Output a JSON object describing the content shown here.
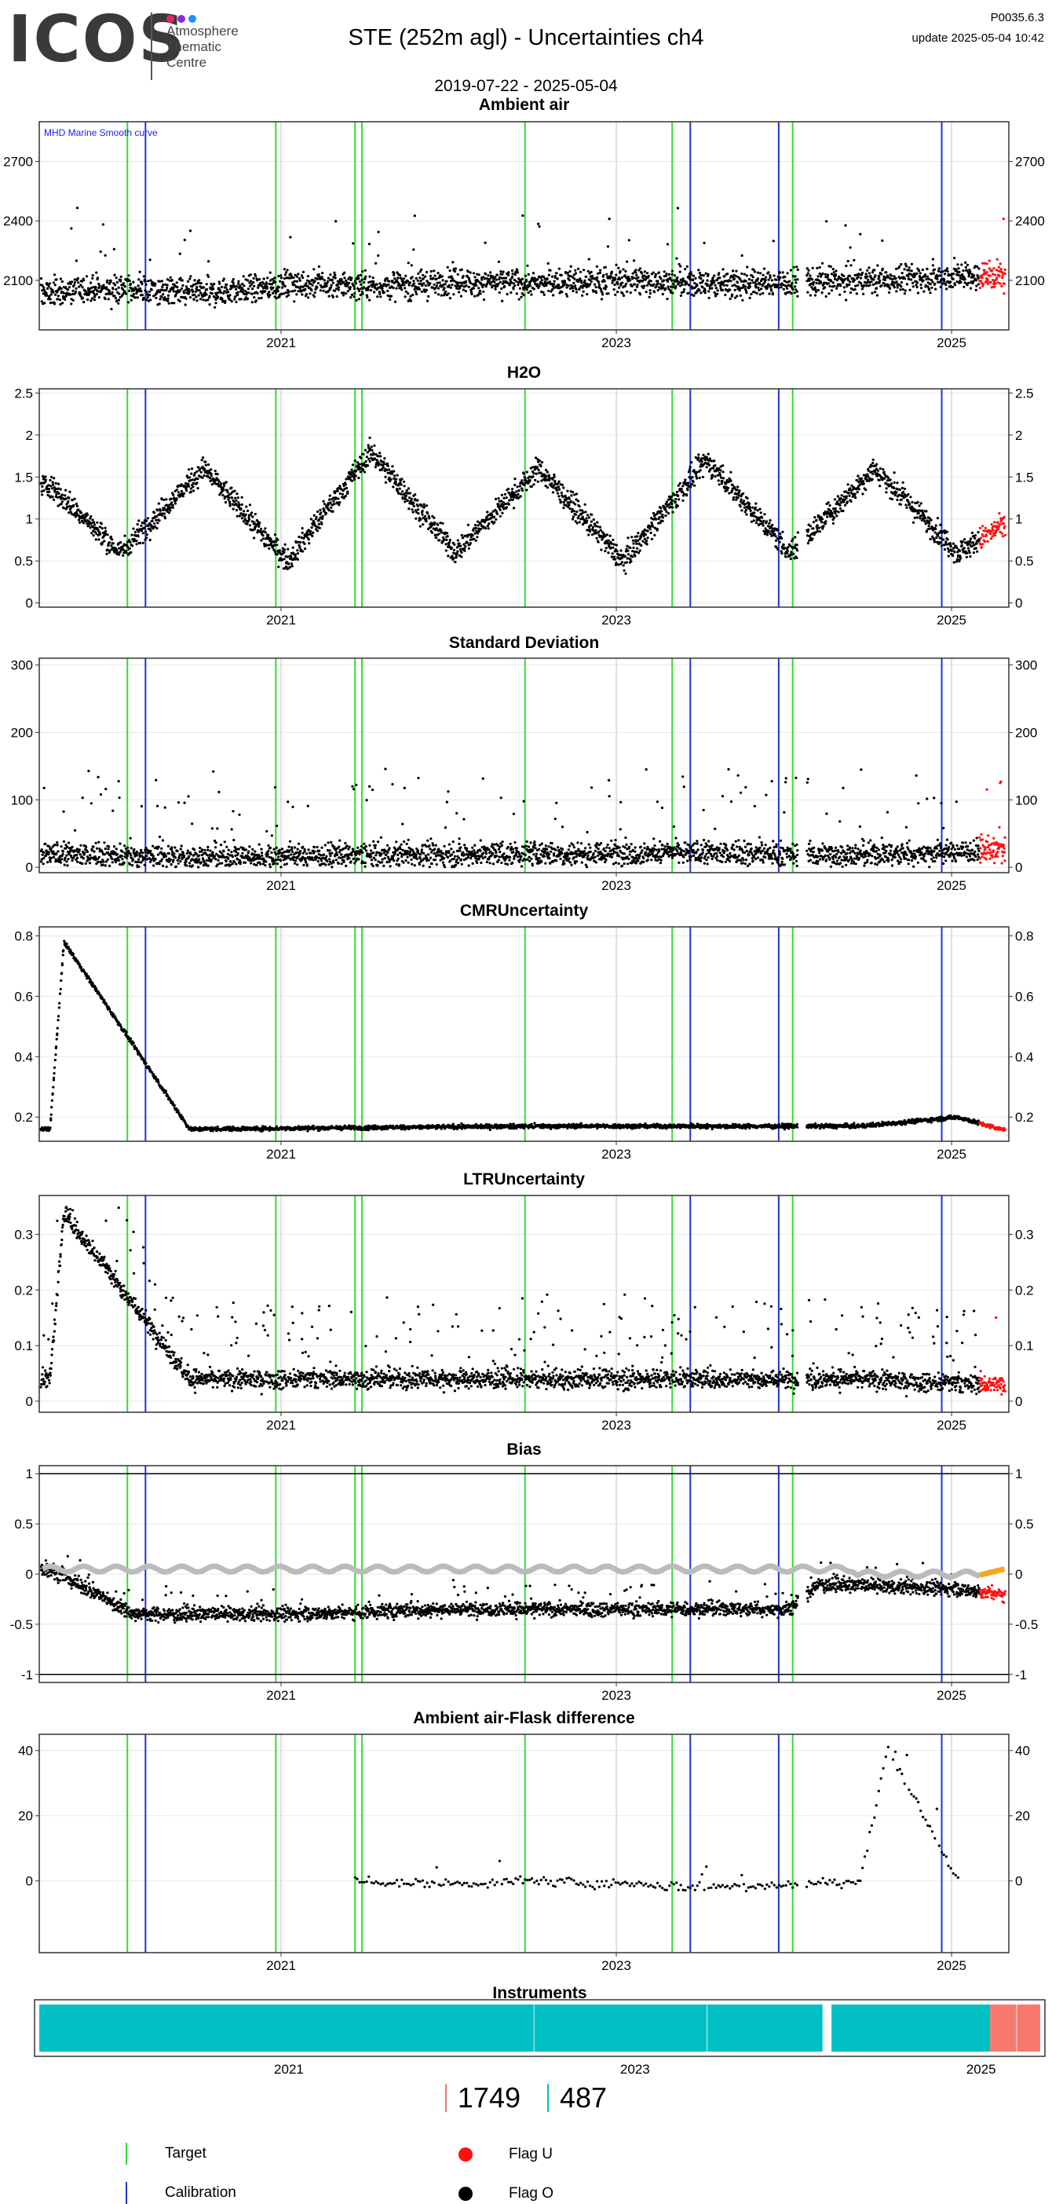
{
  "header": {
    "logo_text": "ICOS",
    "logo_subtitle": [
      "Atmosphere",
      "Thematic",
      "Centre"
    ],
    "title": "STE  (252m agl) - Uncertainties ch4",
    "date_range": "2019-07-22 - 2025-05-04",
    "version": "P0035.6.3",
    "update": "update  2025-05-04 10:42"
  },
  "colors": {
    "target": "#33dd33",
    "calibration": "#2233cc",
    "flag_u": "#ff1111",
    "flag_o": "#000000",
    "smooth": "#bbbbbb",
    "smooth_recent": "#f5a623",
    "instrument_a": "#00c0c4",
    "instrument_b": "#f7796e",
    "annotation_text": "#1a1aff"
  },
  "chart_data": [
    {
      "type": "scatter",
      "title": "Ambient air",
      "x_range": [
        "2019-07-22",
        "2025-05-04"
      ],
      "ylim": [
        1850,
        2900
      ],
      "yticks": [
        2100,
        2400,
        2700
      ],
      "xticks": [
        "2021",
        "2023",
        "2025"
      ],
      "annotation": "MHD Marine Smooth curve",
      "series": [
        {
          "values_x": [
            "2019-08",
            "2020-01",
            "2020-07",
            "2021-01",
            "2021-07",
            "2022-01",
            "2022-07",
            "2023-01",
            "2023-07",
            "2024-01",
            "2024-07",
            "2025-01"
          ],
          "values_y": [
            2040,
            2060,
            2030,
            2080,
            2070,
            2090,
            2085,
            2100,
            2080,
            2090,
            2100,
            2120
          ]
        }
      ]
    },
    {
      "type": "scatter",
      "title": "H2O",
      "x_range": [
        "2019-07-22",
        "2025-05-04"
      ],
      "ylim": [
        -0.05,
        2.55
      ],
      "yticks": [
        0.0,
        0.5,
        1.0,
        1.5,
        2.0,
        2.5
      ],
      "xticks": [
        "2021",
        "2023",
        "2025"
      ],
      "series": [
        {
          "values_x": [
            "2019-08",
            "2020-01",
            "2020-07",
            "2021-01",
            "2021-07",
            "2022-01",
            "2022-07",
            "2023-01",
            "2023-07",
            "2024-01",
            "2024-07",
            "2025-01",
            "2025-04"
          ],
          "values_y": [
            1.4,
            0.6,
            1.6,
            0.5,
            1.8,
            0.6,
            1.6,
            0.5,
            1.7,
            0.6,
            1.6,
            0.6,
            0.9
          ]
        }
      ]
    },
    {
      "type": "scatter",
      "title": "Standard Deviation",
      "x_range": [
        "2019-07-22",
        "2025-05-04"
      ],
      "ylim": [
        -8,
        310
      ],
      "yticks": [
        0,
        100,
        200,
        300
      ],
      "xticks": [
        "2021",
        "2023",
        "2025"
      ],
      "series": [
        {
          "values_x": [
            "2019-08",
            "2020-06",
            "2021-06",
            "2022-06",
            "2023-06",
            "2024-06",
            "2025-03"
          ],
          "values_y": [
            20,
            15,
            18,
            20,
            22,
            18,
            25
          ]
        }
      ]
    },
    {
      "type": "scatter",
      "title": "CMRUncertainty",
      "x_range": [
        "2019-07-22",
        "2025-05-04"
      ],
      "ylim": [
        0.12,
        0.83
      ],
      "yticks": [
        0.2,
        0.4,
        0.6,
        0.8
      ],
      "xticks": [
        "2021",
        "2023",
        "2025"
      ],
      "series": [
        {
          "values_x": [
            "2019-08",
            "2019-09",
            "2020-06",
            "2021-06",
            "2022-06",
            "2023-06",
            "2024-06",
            "2025-01",
            "2025-04"
          ],
          "values_y": [
            0.16,
            0.78,
            0.16,
            0.165,
            0.17,
            0.17,
            0.17,
            0.2,
            0.16
          ]
        }
      ]
    },
    {
      "type": "scatter",
      "title": "LTRUncertainty",
      "x_range": [
        "2019-07-22",
        "2025-05-04"
      ],
      "ylim": [
        -0.02,
        0.37
      ],
      "yticks": [
        0.0,
        0.1,
        0.2,
        0.3
      ],
      "xticks": [
        "2021",
        "2023",
        "2025"
      ],
      "series": [
        {
          "values_x": [
            "2019-08",
            "2019-09",
            "2020-06",
            "2021-06",
            "2022-06",
            "2023-06",
            "2024-06",
            "2025-03"
          ],
          "values_y": [
            0.04,
            0.34,
            0.04,
            0.04,
            0.04,
            0.04,
            0.04,
            0.03
          ]
        }
      ]
    },
    {
      "type": "scatter",
      "title": "Bias",
      "x_range": [
        "2019-07-22",
        "2025-05-04"
      ],
      "ylim": [
        -1.08,
        1.08
      ],
      "yticks": [
        -1.0,
        -0.5,
        0.0,
        0.5,
        1.0
      ],
      "xticks": [
        "2021",
        "2023",
        "2025"
      ],
      "series": [
        {
          "values_x": [
            "2019-08",
            "2020-02",
            "2021-01",
            "2022-01",
            "2023-01",
            "2024-01",
            "2024-03",
            "2025-01",
            "2025-04"
          ],
          "values_y": [
            0.05,
            -0.4,
            -0.4,
            -0.35,
            -0.35,
            -0.35,
            -0.1,
            -0.15,
            -0.2
          ]
        }
      ]
    },
    {
      "type": "scatter",
      "title": "Ambient air-Flask difference",
      "x_range": [
        "2019-07-22",
        "2025-05-04"
      ],
      "ylim": [
        -22,
        45
      ],
      "yticks": [
        0,
        20,
        40
      ],
      "xticks": [
        "2021",
        "2023",
        "2025"
      ],
      "series": [
        {
          "values_x": [
            "2021-06",
            "2022-01",
            "2022-06",
            "2023-01",
            "2023-06",
            "2024-01",
            "2024-06",
            "2024-08",
            "2025-01"
          ],
          "values_y": [
            0,
            -1,
            0,
            -1,
            -2,
            -1,
            0,
            41,
            0
          ]
        }
      ]
    }
  ],
  "instruments": {
    "title": "Instruments",
    "xticks": [
      "2021",
      "2023",
      "2025"
    ]
  },
  "counts": {
    "red": "1749",
    "cyan": "487"
  },
  "legend": {
    "target": "Target",
    "calibration": "Calibration",
    "flag_u": "Flag U",
    "flag_o": "Flag O"
  }
}
